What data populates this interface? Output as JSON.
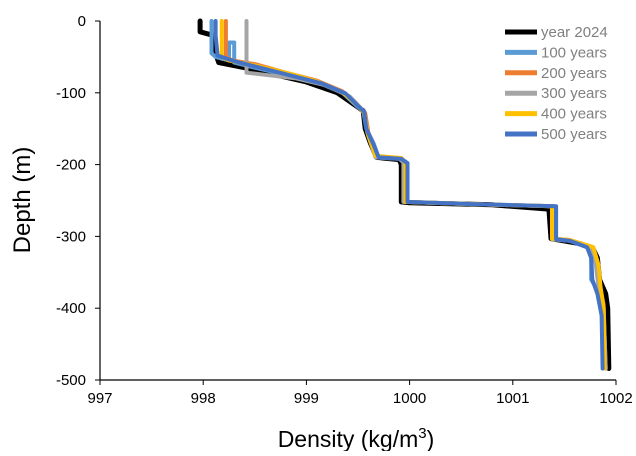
{
  "chart_data": {
    "type": "line",
    "title": "",
    "xlabel": "Density (kg/m3)",
    "xlabel_main": "Density (kg/m",
    "xlabel_sup": "3",
    "xlabel_tail": ")",
    "ylabel": "Depth (m)",
    "xlim": [
      997,
      1002
    ],
    "ylim": [
      -500,
      0
    ],
    "x_ticks": [
      997,
      998,
      999,
      1000,
      1001,
      1002
    ],
    "y_ticks": [
      0,
      -100,
      -200,
      -300,
      -400,
      -500
    ],
    "grid": false,
    "legend_position": "top-right",
    "series": [
      {
        "name": "year 2024",
        "color": "#000000",
        "points": [
          [
            997.97,
            0
          ],
          [
            997.97,
            -15
          ],
          [
            998.1,
            -20
          ],
          [
            998.12,
            -45
          ],
          [
            998.15,
            -58
          ],
          [
            998.4,
            -65
          ],
          [
            998.7,
            -75
          ],
          [
            999.0,
            -85
          ],
          [
            999.3,
            -100
          ],
          [
            999.45,
            -115
          ],
          [
            999.55,
            -125
          ],
          [
            999.57,
            -150
          ],
          [
            999.62,
            -170
          ],
          [
            999.68,
            -190
          ],
          [
            999.9,
            -193
          ],
          [
            999.92,
            -200
          ],
          [
            999.92,
            -252
          ],
          [
            1000.0,
            -253
          ],
          [
            1000.8,
            -256
          ],
          [
            1001.35,
            -262
          ],
          [
            1001.37,
            -303
          ],
          [
            1001.45,
            -305
          ],
          [
            1001.65,
            -310
          ],
          [
            1001.78,
            -318
          ],
          [
            1001.82,
            -330
          ],
          [
            1001.84,
            -360
          ],
          [
            1001.9,
            -380
          ],
          [
            1001.92,
            -400
          ],
          [
            1001.93,
            -484
          ]
        ]
      },
      {
        "name": "100 years",
        "color": "#5B9BD5",
        "points": [
          [
            998.08,
            0
          ],
          [
            998.08,
            -45
          ],
          [
            998.12,
            -50
          ],
          [
            998.25,
            -55
          ],
          [
            998.25,
            -30
          ],
          [
            998.3,
            -30
          ],
          [
            998.3,
            -58
          ],
          [
            998.5,
            -65
          ],
          [
            998.8,
            -75
          ],
          [
            999.1,
            -85
          ],
          [
            999.35,
            -100
          ],
          [
            999.5,
            -120
          ],
          [
            999.55,
            -125
          ],
          [
            999.58,
            -150
          ],
          [
            999.65,
            -170
          ],
          [
            999.7,
            -190
          ],
          [
            999.92,
            -192
          ],
          [
            999.98,
            -198
          ],
          [
            999.98,
            -252
          ],
          [
            1000.6,
            -255
          ],
          [
            1001.4,
            -258
          ],
          [
            1001.4,
            -304
          ],
          [
            1001.55,
            -306
          ],
          [
            1001.72,
            -315
          ],
          [
            1001.76,
            -330
          ],
          [
            1001.76,
            -360
          ],
          [
            1001.84,
            -380
          ],
          [
            1001.88,
            -410
          ],
          [
            1001.88,
            -484
          ]
        ]
      },
      {
        "name": "200 years",
        "color": "#ED7D31",
        "points": [
          [
            998.22,
            0
          ],
          [
            998.22,
            -50
          ],
          [
            998.28,
            -55
          ],
          [
            998.5,
            -60
          ],
          [
            998.8,
            -72
          ],
          [
            999.1,
            -83
          ],
          [
            999.35,
            -98
          ],
          [
            999.5,
            -118
          ],
          [
            999.57,
            -128
          ],
          [
            999.6,
            -155
          ],
          [
            999.68,
            -188
          ],
          [
            999.92,
            -191
          ],
          [
            999.96,
            -197
          ],
          [
            999.96,
            -252
          ],
          [
            1000.6,
            -255
          ],
          [
            1001.38,
            -258
          ],
          [
            1001.38,
            -303
          ],
          [
            1001.55,
            -305
          ],
          [
            1001.76,
            -314
          ],
          [
            1001.82,
            -335
          ],
          [
            1001.84,
            -365
          ],
          [
            1001.88,
            -395
          ],
          [
            1001.9,
            -484
          ]
        ]
      },
      {
        "name": "300 years",
        "color": "#A5A5A5",
        "points": [
          [
            998.42,
            0
          ],
          [
            998.42,
            -72
          ],
          [
            998.6,
            -75
          ],
          [
            998.9,
            -80
          ],
          [
            999.2,
            -90
          ],
          [
            999.42,
            -105
          ],
          [
            999.52,
            -120
          ],
          [
            999.56,
            -128
          ],
          [
            999.6,
            -160
          ],
          [
            999.67,
            -190
          ],
          [
            999.9,
            -192
          ],
          [
            999.94,
            -197
          ],
          [
            999.94,
            -252
          ],
          [
            1000.6,
            -255
          ],
          [
            1001.38,
            -258
          ],
          [
            1001.38,
            -304
          ],
          [
            1001.55,
            -306
          ],
          [
            1001.75,
            -315
          ],
          [
            1001.8,
            -335
          ],
          [
            1001.83,
            -370
          ],
          [
            1001.88,
            -400
          ],
          [
            1001.9,
            -484
          ]
        ]
      },
      {
        "name": "400 years",
        "color": "#FFC000",
        "points": [
          [
            998.18,
            0
          ],
          [
            998.18,
            -50
          ],
          [
            998.25,
            -55
          ],
          [
            998.5,
            -62
          ],
          [
            998.8,
            -72
          ],
          [
            999.1,
            -84
          ],
          [
            999.35,
            -99
          ],
          [
            999.5,
            -118
          ],
          [
            999.56,
            -128
          ],
          [
            999.59,
            -155
          ],
          [
            999.67,
            -188
          ],
          [
            999.92,
            -191
          ],
          [
            999.96,
            -197
          ],
          [
            999.96,
            -252
          ],
          [
            1000.6,
            -255
          ],
          [
            1001.38,
            -258
          ],
          [
            1001.38,
            -303
          ],
          [
            1001.55,
            -305
          ],
          [
            1001.78,
            -315
          ],
          [
            1001.83,
            -340
          ],
          [
            1001.85,
            -370
          ],
          [
            1001.88,
            -400
          ],
          [
            1001.89,
            -484
          ]
        ]
      },
      {
        "name": "500 years",
        "color": "#4472C4",
        "points": [
          [
            998.12,
            0
          ],
          [
            998.12,
            -20
          ],
          [
            998.14,
            -48
          ],
          [
            998.3,
            -56
          ],
          [
            998.55,
            -65
          ],
          [
            998.85,
            -76
          ],
          [
            999.15,
            -87
          ],
          [
            999.38,
            -101
          ],
          [
            999.52,
            -121
          ],
          [
            999.56,
            -126
          ],
          [
            999.58,
            -150
          ],
          [
            999.65,
            -172
          ],
          [
            999.7,
            -190
          ],
          [
            999.92,
            -192
          ],
          [
            999.98,
            -198
          ],
          [
            999.98,
            -252
          ],
          [
            1000.6,
            -255
          ],
          [
            1001.42,
            -258
          ],
          [
            1001.42,
            -304
          ],
          [
            1001.55,
            -306
          ],
          [
            1001.72,
            -315
          ],
          [
            1001.76,
            -330
          ],
          [
            1001.77,
            -360
          ],
          [
            1001.82,
            -380
          ],
          [
            1001.86,
            -410
          ],
          [
            1001.87,
            -484
          ]
        ]
      }
    ]
  }
}
